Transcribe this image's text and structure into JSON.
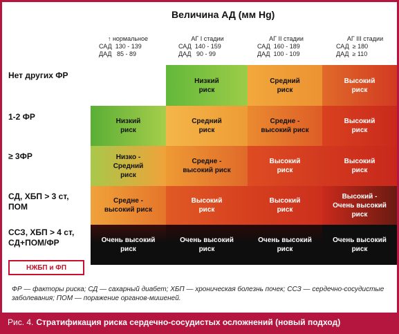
{
  "title": "Величина АД (мм Hg)",
  "columns": [
    {
      "line1": "↑ нормальное",
      "line2": "САД  130 - 139",
      "line3": "ДАД   85 - 89"
    },
    {
      "line1": "АГ I стадии",
      "line2": "САД  140 - 159",
      "line3": "ДАД   90 - 99"
    },
    {
      "line1": "АГ II стадии",
      "line2": "САД  160 - 189",
      "line3": "ДАД  100 - 109"
    },
    {
      "line1": "АГ III стадии",
      "line2": "САД  ≥ 180",
      "line3": "ДАД  ≥ 110"
    }
  ],
  "rows": [
    {
      "label": "Нет других ФР",
      "cells": [
        "",
        "Низкий\nриск",
        "Средний\nриск",
        "Высокий\nриск"
      ]
    },
    {
      "label": "1-2 ФР",
      "cells": [
        "Низкий\nриск",
        "Средний\nриск",
        "Средне -\nвысокий риск",
        "Высокий\nриск"
      ]
    },
    {
      "label": "≥ 3ФР",
      "cells": [
        "Низко -\nСредний\nриск",
        "Средне -\nвысокий риск",
        "Высокий\nриск",
        "Высокий\nриск"
      ]
    },
    {
      "label": "СД,  ХБП > 3 ст,\nПОМ",
      "cells": [
        "Средне -\nвысокий риск",
        "Высокий\nриск",
        "Высокий\nриск",
        "Высокий -\nОчень высокий\nриск"
      ]
    },
    {
      "label": "ССЗ,  ХБП > 4 ст,\nСД+ПОМ/ФР",
      "cells": [
        "Очень высокий\nриск",
        "Очень высокий\nриск",
        "Очень высокий\nриск",
        "Очень высокий\nриск"
      ]
    }
  ],
  "nzhbp_label": "НЖБП и ФП",
  "footnote": "ФР — факторы риска; СД — сахарный диабет; ХБП — хроническая болезнь почек; ССЗ — сердечно-сосудистые заболевания; ПОМ — поражение органов-мишеней.",
  "caption": {
    "prefix": "Рис. 4.",
    "text": "Стратификация риска сердечно-сосудистых осложнений (новый подход)"
  },
  "colors": {
    "low": "#6cbf3f",
    "moderate": "#f0a23a",
    "high": "#d9381e",
    "very_high": "#0e0e0e",
    "accent": "#b5163f"
  }
}
